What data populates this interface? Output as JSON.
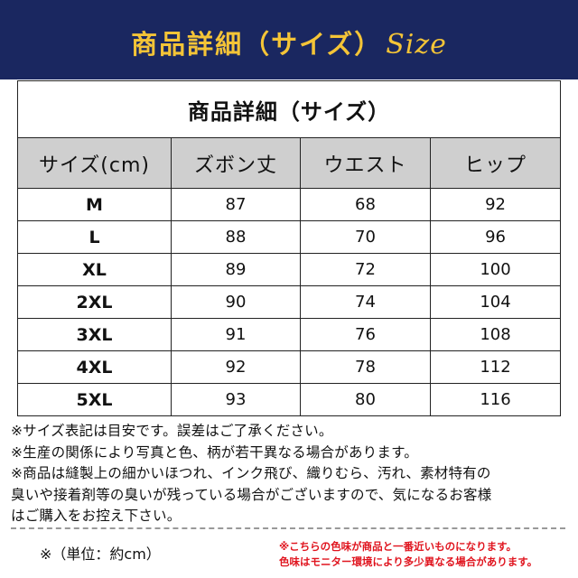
{
  "banner": {
    "title": "商品詳細（サイズ）",
    "script_word": "Size",
    "background": "#1a2760",
    "text_color": "#f4c437"
  },
  "table": {
    "title": "商品詳細（サイズ）",
    "headers": [
      "サイズ(cm)",
      "ズボン丈",
      "ウエスト",
      "ヒップ"
    ],
    "header_background": "#cfcfcf",
    "rows": [
      [
        "M",
        "87",
        "68",
        "92"
      ],
      [
        "L",
        "88",
        "70",
        "96"
      ],
      [
        "XL",
        "89",
        "72",
        "100"
      ],
      [
        "2XL",
        "90",
        "74",
        "104"
      ],
      [
        "3XL",
        "91",
        "76",
        "108"
      ],
      [
        "4XL",
        "92",
        "78",
        "112"
      ],
      [
        "5XL",
        "93",
        "80",
        "116"
      ]
    ]
  },
  "notes": [
    "※サイズ表記は目安です。誤差はご了承ください。",
    "※生産の関係により写真と色、柄が若干異なる場合があります。",
    "※商品は縫製上の細かいほつれ、インク飛び、織りむら、汚れ、素材特有の",
    "臭いや接着剤等の臭いが残っている場合がございますので、気になるお客様",
    "はご購入をお控え下さい。"
  ],
  "unit_note": "※（単位：約cm）",
  "color_note": {
    "lines": [
      "※こちらの色味が商品と一番近いものになります。",
      "色味はモニター環境により多少異なる場合があります。"
    ],
    "color": "#e0141e"
  }
}
